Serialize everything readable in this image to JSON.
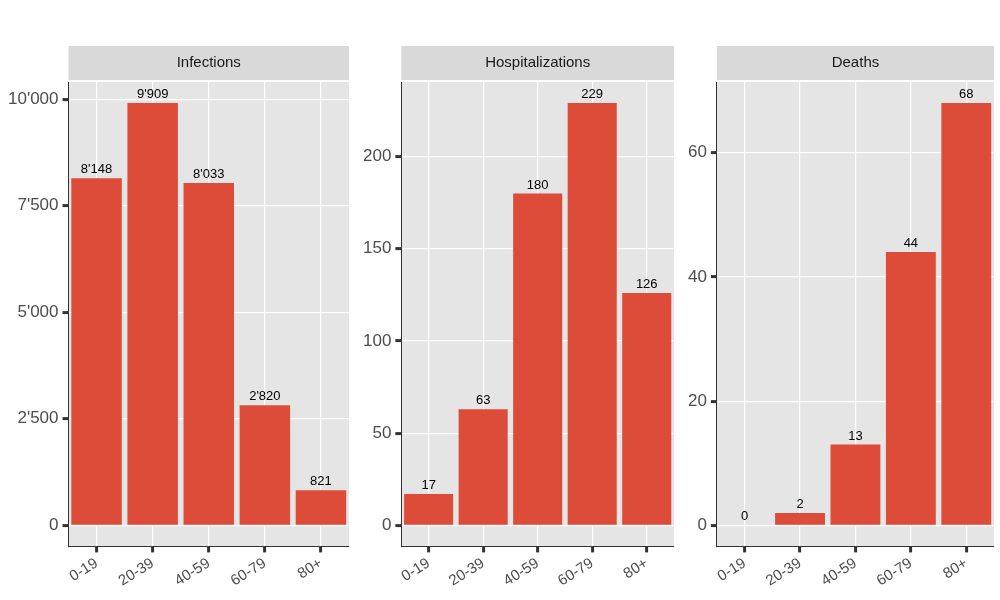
{
  "chart_data": [
    {
      "type": "bar",
      "title": "Infections",
      "categories": [
        "0-19",
        "20-39",
        "40-59",
        "60-79",
        "80+"
      ],
      "values": [
        8148,
        9909,
        8033,
        2820,
        821
      ],
      "value_labels": [
        "8'148",
        "9'909",
        "8'033",
        "2'820",
        "821"
      ],
      "color": "#dd4b39",
      "ylim": [
        -495,
        10404
      ],
      "yticks": [
        0,
        {
          "value": 2500,
          "label": "2'500"
        },
        {
          "value": 5000,
          "label": "5'000"
        },
        {
          "value": 7500,
          "label": "7'500"
        },
        {
          "value": 10000,
          "label": "10'000"
        }
      ],
      "grid": true,
      "data_labels": true
    },
    {
      "type": "bar",
      "title": "Hospitalizations",
      "categories": [
        "0-19",
        "20-39",
        "40-59",
        "60-79",
        "80+"
      ],
      "values": [
        17,
        63,
        180,
        229,
        126
      ],
      "color": "#dd4b39",
      "ylim": [
        -11.45,
        240.45
      ],
      "yticks": [
        0,
        50,
        100,
        150,
        200
      ],
      "grid": true,
      "data_labels": true
    },
    {
      "type": "bar",
      "title": "Deaths",
      "categories": [
        "0-19",
        "20-39",
        "40-59",
        "60-79",
        "80+"
      ],
      "values": [
        0,
        2,
        13,
        44,
        68
      ],
      "color": "#dd4b39",
      "ylim": [
        -3.4,
        71.4
      ],
      "yticks": [
        0,
        20,
        40,
        60
      ],
      "grid": true,
      "data_labels": true
    }
  ]
}
